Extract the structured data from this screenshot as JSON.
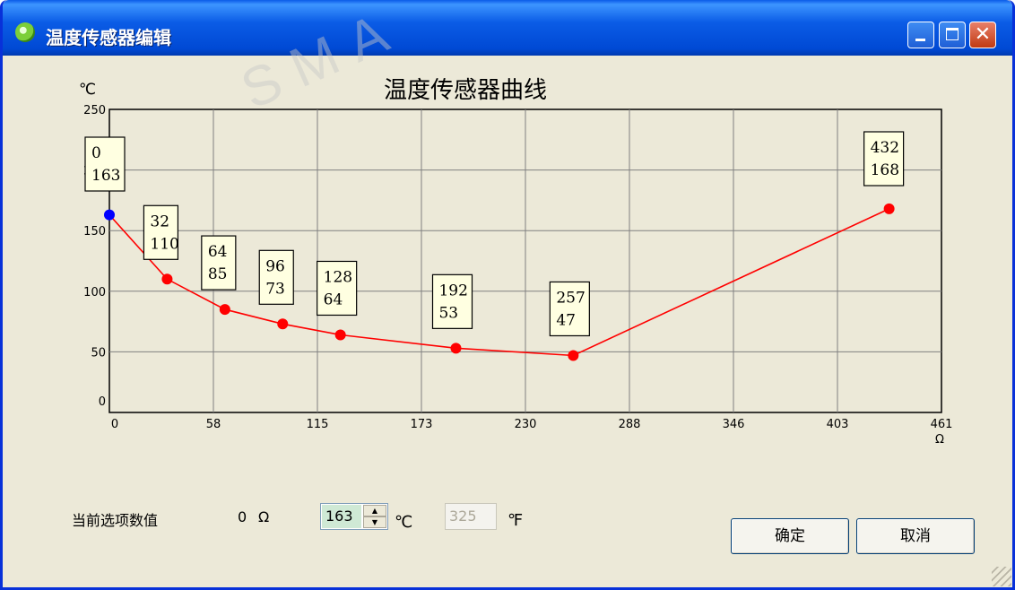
{
  "window": {
    "title": "温度传感器编辑"
  },
  "watermark": "SMA",
  "chart_data": {
    "type": "line",
    "title": "温度传感器曲线",
    "ylabel": "℃",
    "xlabel": "Ω",
    "xlim": [
      0,
      461
    ],
    "ylim": [
      0,
      250
    ],
    "x_ticks": [
      "0",
      "58",
      "115",
      "173",
      "230",
      "288",
      "346",
      "403",
      "461"
    ],
    "y_ticks": [
      "0",
      "50",
      "100",
      "150",
      "200",
      "250"
    ],
    "grid": true,
    "colors": {
      "line": "#ff0000",
      "point": "#ff0000",
      "selected_point": "#0000ff",
      "label_box": "#ffffe1"
    },
    "series": [
      {
        "x": [
          0,
          32,
          64,
          96,
          128,
          192,
          257,
          432
        ],
        "y": [
          163,
          110,
          85,
          73,
          64,
          53,
          47,
          168
        ]
      }
    ],
    "selected_index": 0
  },
  "form": {
    "current_label": "当前选项数值",
    "current_value": "0",
    "current_unit": "Ω",
    "celsius_value": "163",
    "celsius_unit": "℃",
    "fahrenheit_value": "325",
    "fahrenheit_unit": "℉"
  },
  "buttons": {
    "ok": "确定",
    "cancel": "取消"
  }
}
